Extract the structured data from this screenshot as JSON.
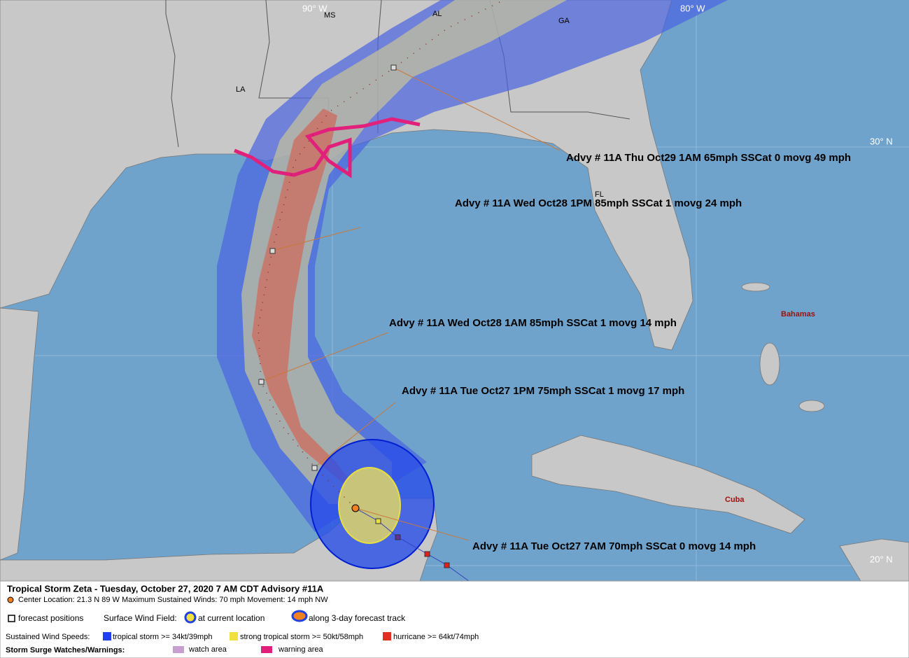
{
  "map": {
    "grid_labels": [
      "90° W",
      "80° W",
      "30° N",
      "20° N"
    ],
    "region_labels": [
      "MS",
      "AL",
      "GA",
      "LA",
      "FL",
      "Bahamas",
      "Cuba"
    ],
    "advisories": [
      "Advy # 11A Thu Oct29 1AM  65mph SSCat 0 movg 49 mph",
      "Advy # 11A Wed Oct28 1PM  85mph SSCat 1 movg 24 mph",
      "Advy # 11A Wed Oct28 1AM  85mph SSCat 1 movg 14 mph",
      "Advy # 11A Tue Oct27 1PM  75mph SSCat 1 movg 17 mph",
      "Advy # 11A Tue Oct27 7AM  70mph SSCat 0 movg 14 mph"
    ]
  },
  "legend": {
    "title": "Tropical Storm Zeta  -  Tuesday, October 27, 2020  7 AM CDT   Advisory #11A",
    "details": "Center Location: 21.3 N  89 W   Maximum Sustained Winds: 70 mph   Movement: 14 mph NW",
    "forecast_positions": "forecast positions",
    "wind_field_label": "Surface Wind Field:",
    "current_location": "at current location",
    "forecast_track": "along 3-day forecast track",
    "wind_speeds_label": "Sustained Wind Speeds:",
    "tropical_storm": "tropical storm >= 34kt/39mph",
    "strong_tropical_storm": "strong tropical storm >= 50kt/58mph",
    "hurricane": "hurricane >= 64kt/74mph",
    "surge_label": "Storm Surge Watches/Warnings:",
    "watch_area": "watch area",
    "warning_area": "warning area"
  }
}
